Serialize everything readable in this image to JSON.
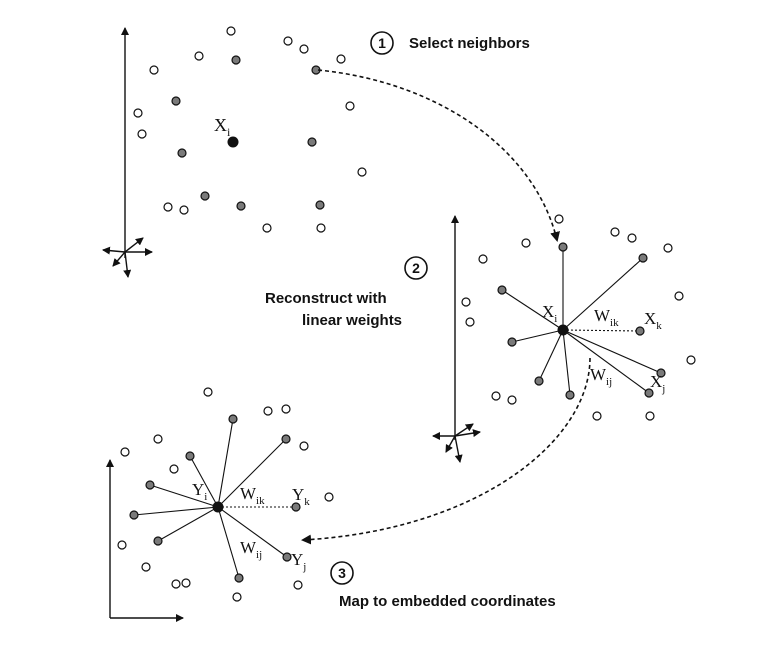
{
  "steps": [
    {
      "number": "1",
      "label": "Select neighbors"
    },
    {
      "number": "2",
      "label_line1": "Reconstruct with",
      "label_line2": "linear weights"
    },
    {
      "number": "3",
      "label": "Map to embedded coordinates"
    }
  ],
  "panel1": {
    "point_label": {
      "base": "X",
      "sub": "i"
    }
  },
  "panel2": {
    "center": {
      "base": "X",
      "sub": "i"
    },
    "neighbor_k": {
      "base": "X",
      "sub": "k"
    },
    "neighbor_j": {
      "base": "X",
      "sub": "j"
    },
    "weight_ik": {
      "base": "W",
      "sub": "ik"
    },
    "weight_ij": {
      "base": "W",
      "sub": "ij"
    }
  },
  "panel3": {
    "center": {
      "base": "Y",
      "sub": "i"
    },
    "neighbor_k": {
      "base": "Y",
      "sub": "k"
    },
    "neighbor_j": {
      "base": "Y",
      "sub": "j"
    },
    "weight_ik": {
      "base": "W",
      "sub": "ik"
    },
    "weight_ij": {
      "base": "W",
      "sub": "ij"
    }
  },
  "colors": {
    "ink": "#111111",
    "neighbor_fill": "#7a7a7a",
    "open_fill": "#ffffff"
  }
}
